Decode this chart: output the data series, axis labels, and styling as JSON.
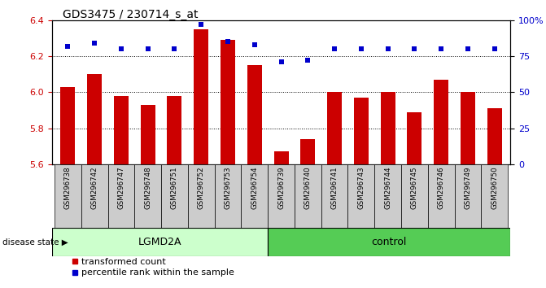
{
  "title": "GDS3475 / 230714_s_at",
  "samples": [
    "GSM296738",
    "GSM296742",
    "GSM296747",
    "GSM296748",
    "GSM296751",
    "GSM296752",
    "GSM296753",
    "GSM296754",
    "GSM296739",
    "GSM296740",
    "GSM296741",
    "GSM296743",
    "GSM296744",
    "GSM296745",
    "GSM296746",
    "GSM296749",
    "GSM296750"
  ],
  "transformed_count": [
    6.03,
    6.1,
    5.98,
    5.93,
    5.98,
    6.35,
    6.29,
    6.15,
    5.67,
    5.74,
    6.0,
    5.97,
    6.0,
    5.89,
    6.07,
    6.0,
    5.91
  ],
  "percentile_rank": [
    82,
    84,
    80,
    80,
    80,
    97,
    85,
    83,
    71,
    72,
    80,
    80,
    80,
    80,
    80,
    80,
    80
  ],
  "groups": [
    "LGMD2A",
    "LGMD2A",
    "LGMD2A",
    "LGMD2A",
    "LGMD2A",
    "LGMD2A",
    "LGMD2A",
    "LGMD2A",
    "control",
    "control",
    "control",
    "control",
    "control",
    "control",
    "control",
    "control",
    "control"
  ],
  "ylim_left": [
    5.6,
    6.4
  ],
  "ylim_right": [
    0,
    100
  ],
  "yticks_left": [
    5.6,
    5.8,
    6.0,
    6.2,
    6.4
  ],
  "yticks_right": [
    0,
    25,
    50,
    75,
    100
  ],
  "ytick_labels_right": [
    "0",
    "25",
    "50",
    "75",
    "100%"
  ],
  "bar_color": "#cc0000",
  "dot_color": "#0000cc",
  "lgmd2a_color": "#ccffcc",
  "control_color": "#55cc55",
  "label_bg_color": "#cccccc",
  "bar_width": 0.55,
  "tick_label_color_left": "#cc0000",
  "tick_label_color_right": "#0000cc",
  "disease_state_label": "disease state",
  "lgmd2a_label": "LGMD2A",
  "control_label": "control",
  "legend_bar": "transformed count",
  "legend_dot": "percentile rank within the sample",
  "n_lgmd": 8,
  "grid_lines": [
    5.8,
    6.0,
    6.2
  ]
}
